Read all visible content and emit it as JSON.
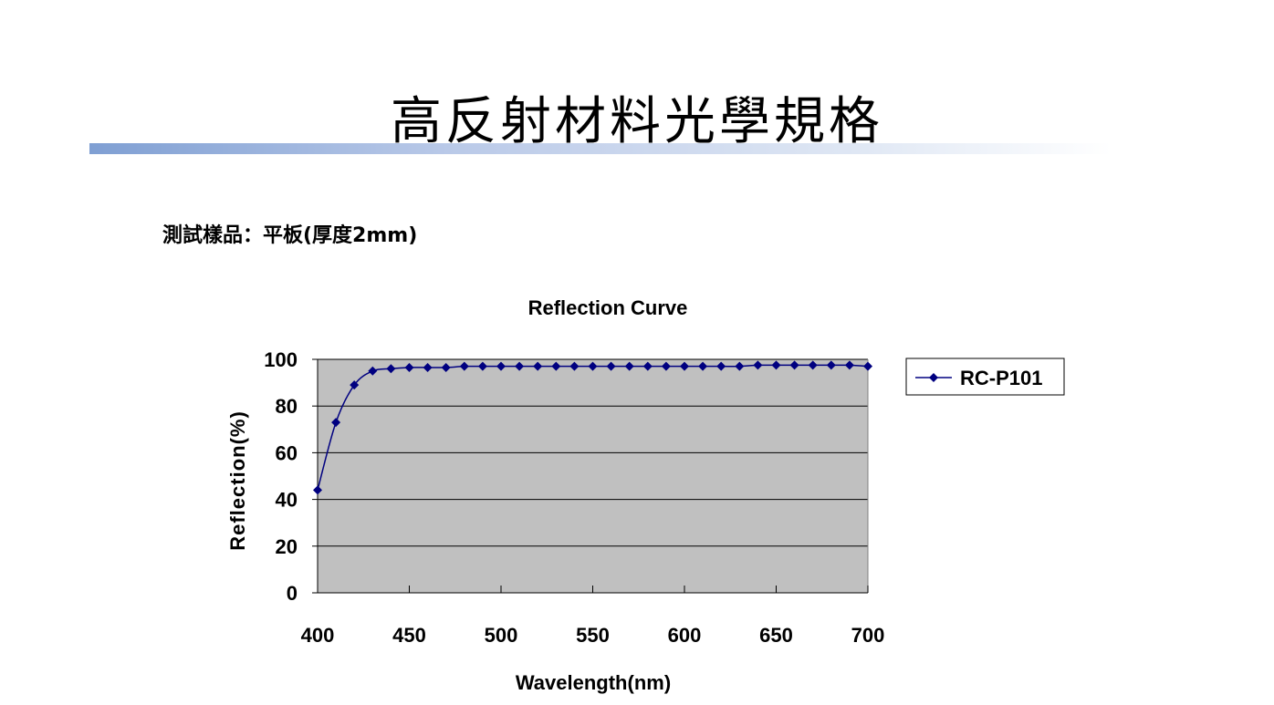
{
  "slide": {
    "title": "高反射材料光學規格",
    "subtitle": "測試樣品：平板(厚度2mm)"
  },
  "colors": {
    "series": "#000080",
    "plot_background": "#c0c0c0",
    "title_rule": "#7f9fd3"
  },
  "chart_data": {
    "type": "line",
    "title": "Reflection Curve",
    "xlabel": "Wavelength(nm)",
    "ylabel": "Reflection(%)",
    "xlim": [
      400,
      700
    ],
    "ylim": [
      0,
      100
    ],
    "xticks": [
      400,
      450,
      500,
      550,
      600,
      650,
      700
    ],
    "yticks": [
      0,
      20,
      40,
      60,
      80,
      100
    ],
    "grid": "horizontal",
    "legend_position": "right",
    "series": [
      {
        "name": "RC-P101",
        "marker": "diamond",
        "x": [
          400,
          410,
          420,
          430,
          440,
          450,
          460,
          470,
          480,
          490,
          500,
          510,
          520,
          530,
          540,
          550,
          560,
          570,
          580,
          590,
          600,
          610,
          620,
          630,
          640,
          650,
          660,
          670,
          680,
          690,
          700
        ],
        "y": [
          44,
          73,
          89,
          95,
          96,
          96.5,
          96.5,
          96.5,
          97,
          97,
          97,
          97,
          97,
          97,
          97,
          97,
          97,
          97,
          97,
          97,
          97,
          97,
          97,
          97,
          97.5,
          97.5,
          97.5,
          97.5,
          97.5,
          97.5,
          97
        ]
      }
    ]
  }
}
